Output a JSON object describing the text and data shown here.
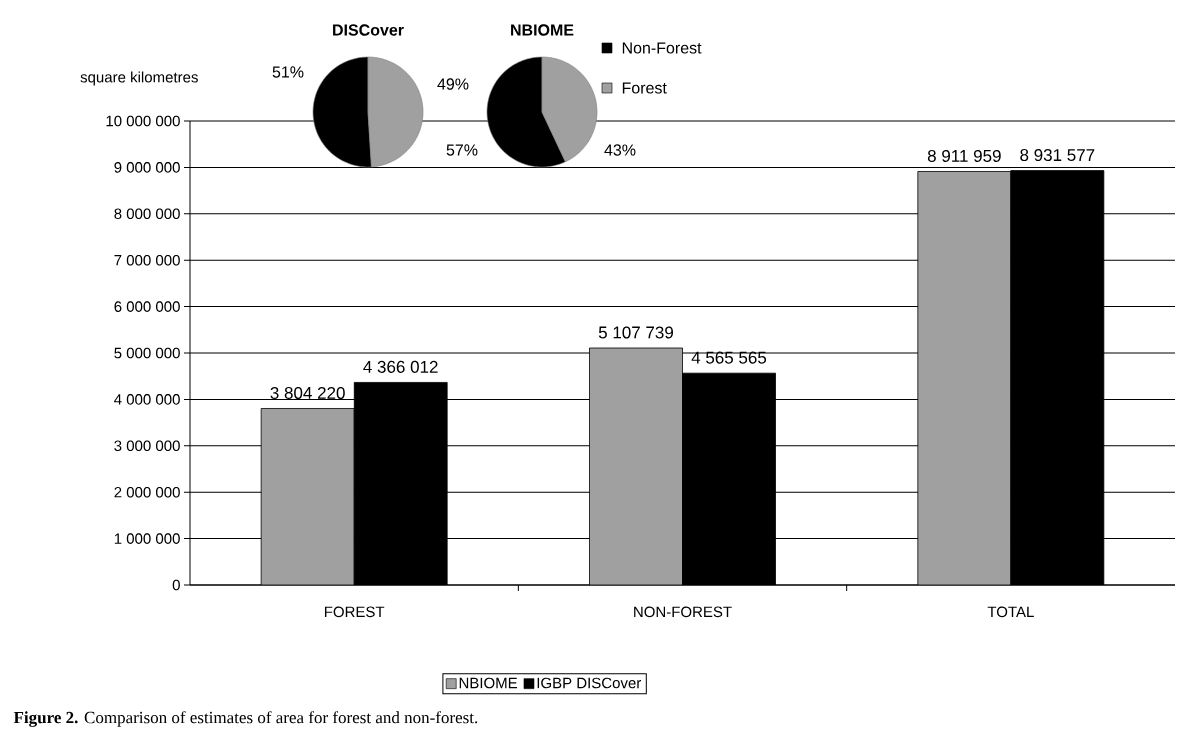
{
  "chart_data": [
    {
      "type": "bar",
      "ylabel": "square kilometres",
      "categories": [
        "FOREST",
        "NON-FOREST",
        "TOTAL"
      ],
      "series": [
        {
          "name": "NBIOME",
          "color": "#a0a0a0",
          "values": [
            3804220,
            5107739,
            8911959
          ],
          "value_labels": [
            "3 804 220",
            "5 107 739",
            "8 911 959"
          ]
        },
        {
          "name": "IGBP DISCover",
          "color": "#000000",
          "values": [
            4366012,
            4565565,
            8931577
          ],
          "value_labels": [
            "4 366 012",
            "4 565 565",
            "8 931 577"
          ]
        }
      ],
      "ylim": [
        0,
        10000000
      ],
      "yticks": [
        {
          "value": 0,
          "label": "0"
        },
        {
          "value": 1000000,
          "label": "1 000 000"
        },
        {
          "value": 2000000,
          "label": "2 000 000"
        },
        {
          "value": 3000000,
          "label": "3 000 000"
        },
        {
          "value": 4000000,
          "label": "4 000 000"
        },
        {
          "value": 5000000,
          "label": "5 000 000"
        },
        {
          "value": 6000000,
          "label": "6 000 000"
        },
        {
          "value": 7000000,
          "label": "7 000 000"
        },
        {
          "value": 8000000,
          "label": "8 000 000"
        },
        {
          "value": 9000000,
          "label": "9 000 000"
        },
        {
          "value": 10000000,
          "label": "10 000 000"
        }
      ],
      "grid": "y",
      "legend": "bottom",
      "annotations": [
        "**Figure 2.** Comparison of estimates of area for forest and non-forest."
      ]
    },
    {
      "type": "pie",
      "title": "DISCover",
      "categories": [
        null,
        null
      ],
      "values": [
        51,
        49
      ],
      "colors": [
        "#000000",
        "#a0a0a0"
      ],
      "value_labels": [
        "51%",
        "49%"
      ]
    },
    {
      "type": "pie",
      "title": "NBIOME",
      "categories": [
        "Non-Forest",
        "Forest"
      ],
      "values": [
        57,
        43
      ],
      "colors": [
        "#000000",
        "#a0a0a0"
      ],
      "value_labels": [
        "57%",
        "43%"
      ],
      "legend": "right"
    }
  ]
}
